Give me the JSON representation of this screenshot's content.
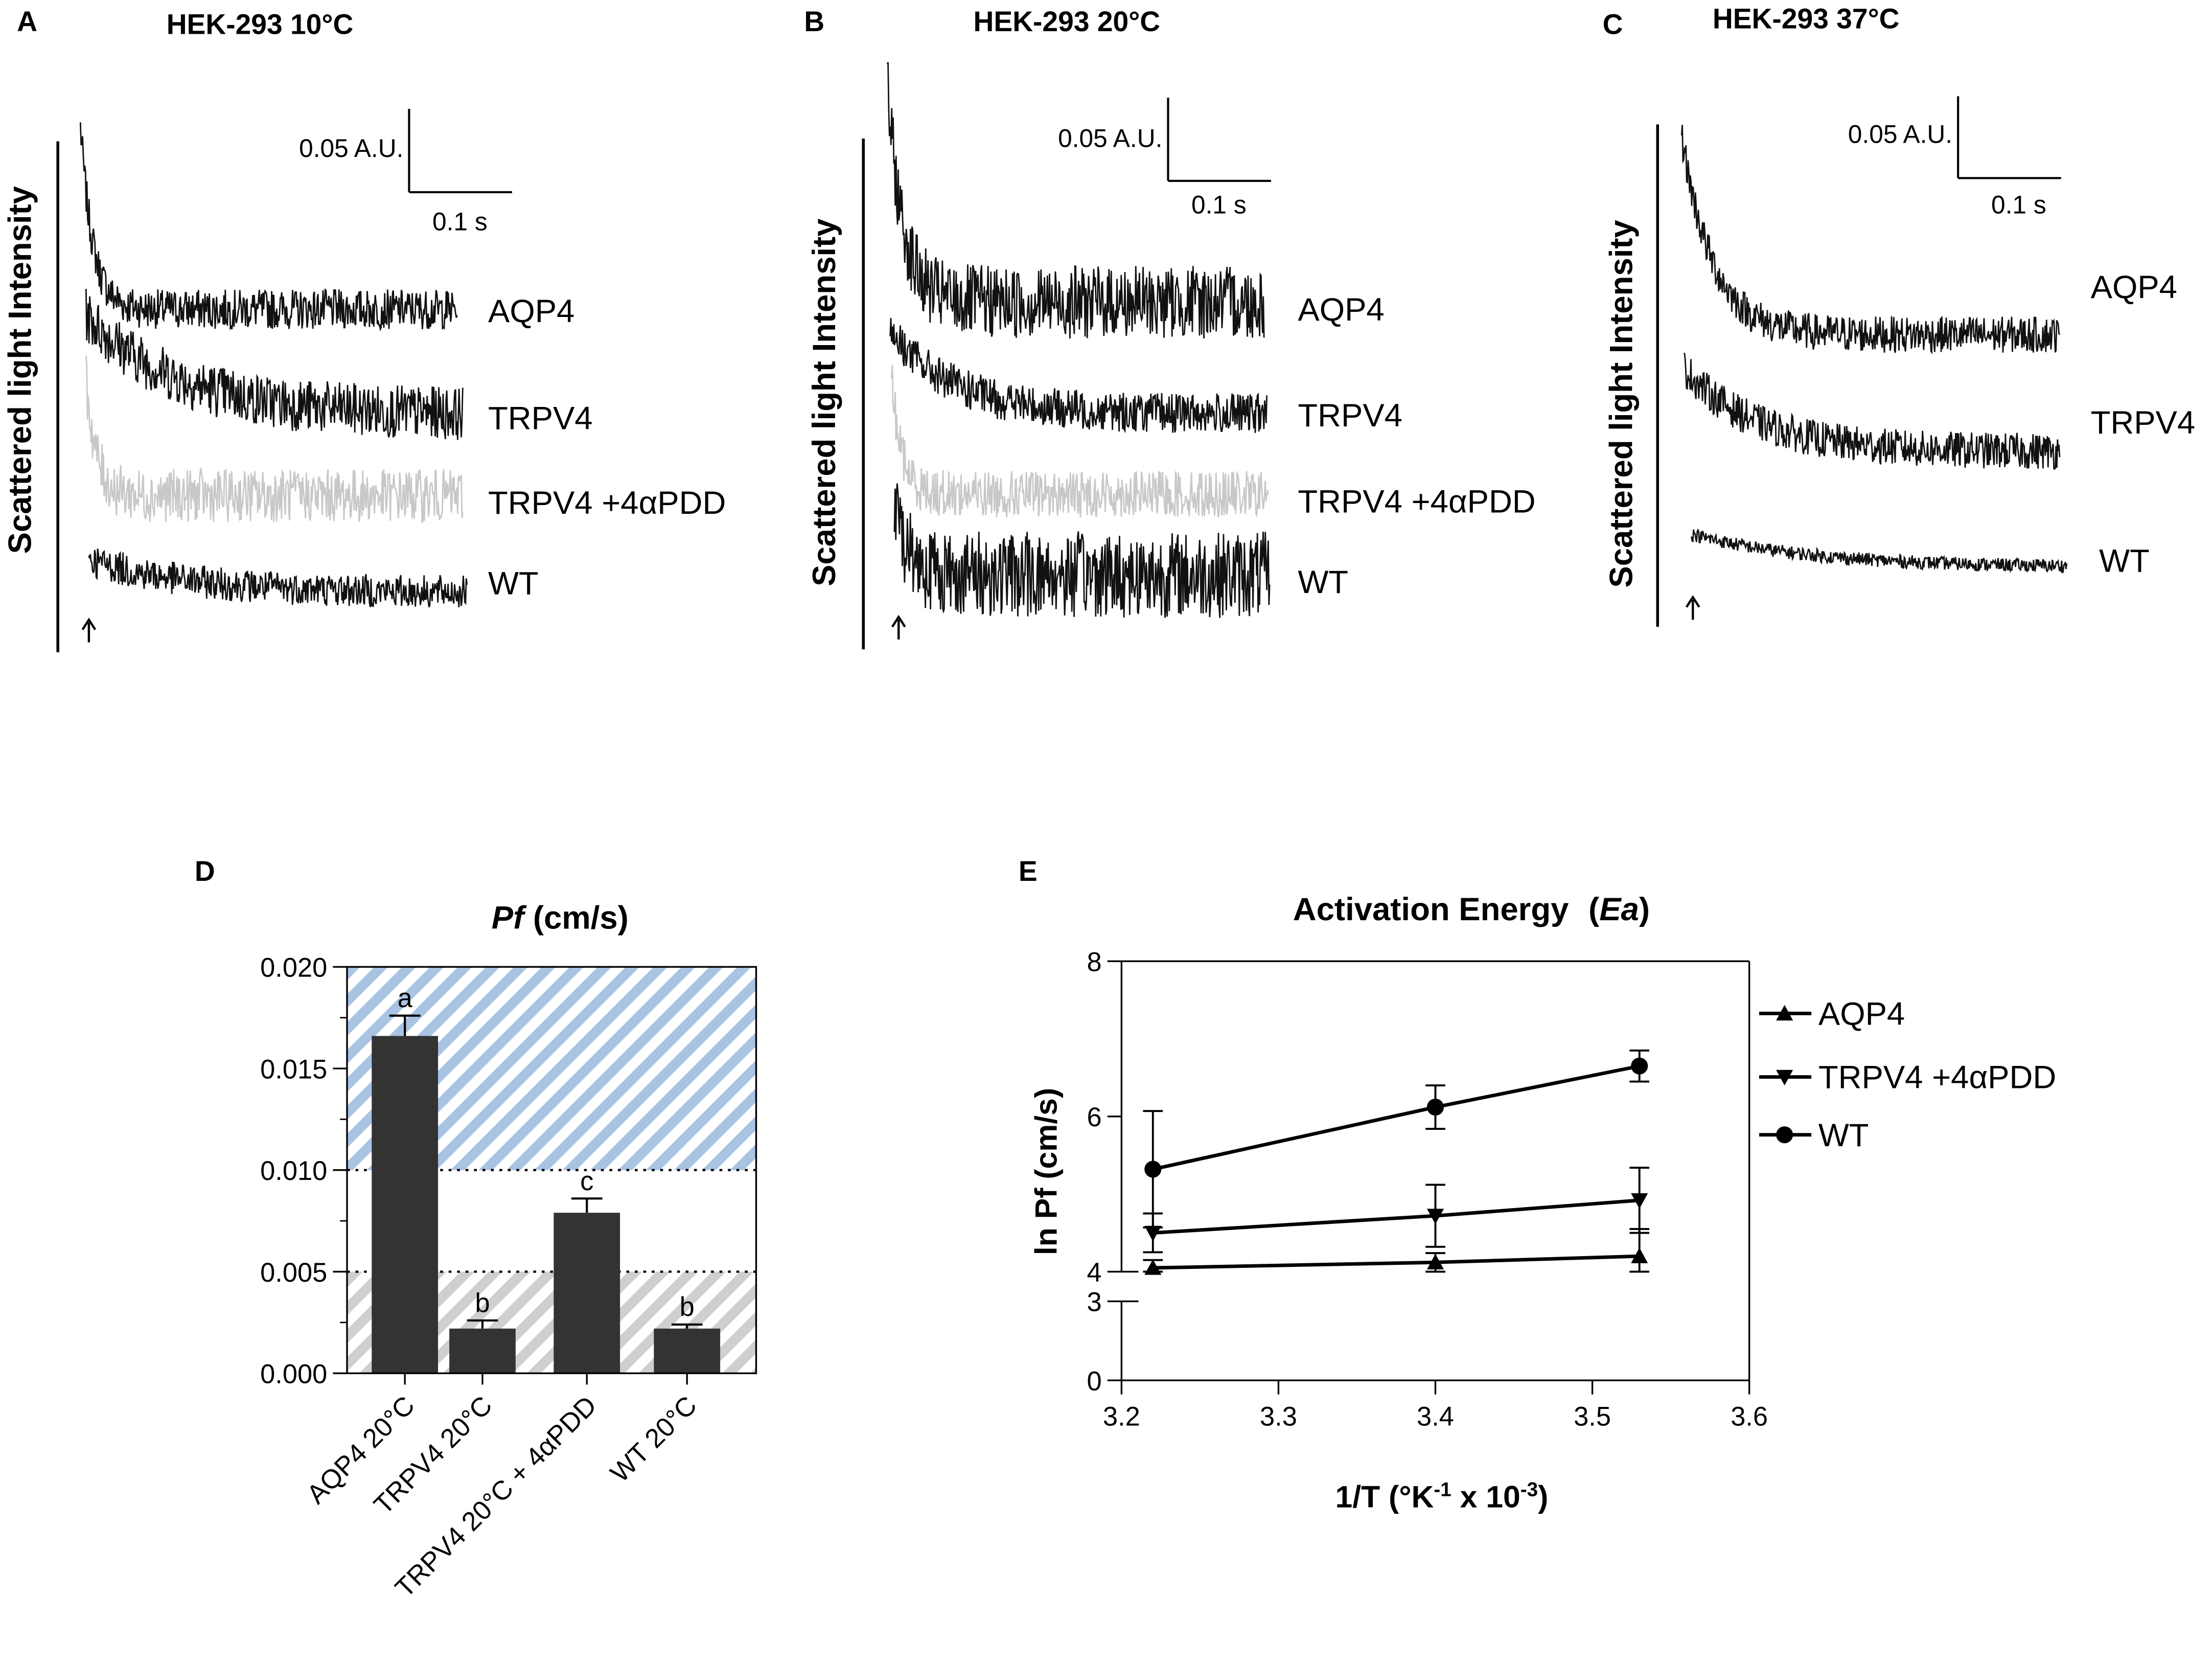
{
  "colors": {
    "trace_dark": "#111111",
    "trace_light": "#c8c8c8",
    "bar": "#333333",
    "hatch_blue": "#a9c3e3",
    "hatch_gray": "#cfcfcf",
    "axis": "#000000"
  },
  "chart_data": [
    {
      "id": "A",
      "type": "line",
      "panel_label": "A",
      "title": "HEK-293 10°C",
      "ylabel": "Scattered light Intensity",
      "scale_bar": {
        "y_label": "0.05 A.U.",
        "x_label": "0.1 s"
      },
      "stimulus_marker": "arrow",
      "traces": [
        {
          "name": "AQP4",
          "shade": "dark",
          "drop": 0.11,
          "tau": 0.012,
          "noise": 0.012
        },
        {
          "name": "TRPV4",
          "shade": "dark",
          "drop": 0.06,
          "tau": 0.09,
          "noise": 0.016
        },
        {
          "name": "TRPV4 +4αPDD",
          "shade": "light",
          "drop": 0.07,
          "tau": 0.01,
          "noise": 0.016
        },
        {
          "name": "WT",
          "shade": "dark",
          "drop": 0.02,
          "tau": 0.1,
          "noise": 0.01
        }
      ]
    },
    {
      "id": "B",
      "type": "line",
      "panel_label": "B",
      "title": "HEK-293 20°C",
      "ylabel": "Scattered light Intensity",
      "scale_bar": {
        "y_label": "0.05 A.U.",
        "x_label": "0.1 s"
      },
      "stimulus_marker": "arrow",
      "traces": [
        {
          "name": "AQP4",
          "shade": "dark",
          "drop": 0.13,
          "tau": 0.015,
          "noise": 0.022
        },
        {
          "name": "TRPV4",
          "shade": "dark",
          "drop": 0.05,
          "tau": 0.06,
          "noise": 0.012
        },
        {
          "name": "TRPV4 +4αPDD",
          "shade": "light",
          "drop": 0.07,
          "tau": 0.01,
          "noise": 0.014
        },
        {
          "name": "WT",
          "shade": "dark",
          "drop": 0.04,
          "tau": 0.015,
          "noise": 0.026
        }
      ]
    },
    {
      "id": "C",
      "type": "line",
      "panel_label": "C",
      "title": "HEK-293 37°C",
      "ylabel": "Scattered light Intensity",
      "scale_bar": {
        "y_label": "0.05 A.U.",
        "x_label": "0.1 s"
      },
      "stimulus_marker": "arrow",
      "traces": [
        {
          "name": "AQP4",
          "shade": "dark",
          "drop": 0.12,
          "tau": 0.03,
          "noise": 0.011
        },
        {
          "name": "TRPV4",
          "shade": "dark",
          "drop": 0.05,
          "tau": 0.07,
          "noise": 0.011
        },
        {
          "name": "WT",
          "shade": "dark",
          "drop": 0.02,
          "tau": 0.12,
          "noise": 0.004
        }
      ]
    },
    {
      "id": "D",
      "type": "bar",
      "panel_label": "D",
      "title_italic": "Pf",
      "title_rest": " (cm/s)",
      "categories": [
        "AQP4 20°C",
        "TRPV4 20°C",
        "TRPV4 20°C + 4αPDD",
        "WT 20°C"
      ],
      "values": [
        0.0166,
        0.0022,
        0.0079,
        0.0022
      ],
      "errors": [
        0.001,
        0.0004,
        0.0007,
        0.0002
      ],
      "significance": [
        "a",
        "b",
        "c",
        "b"
      ],
      "ylim": [
        0,
        0.02
      ],
      "yticks": [
        "0.000",
        "0.005",
        "0.010",
        "0.015",
        "0.020"
      ],
      "ytick_values": [
        0,
        0.005,
        0.01,
        0.015,
        0.02
      ],
      "threshold_lines": [
        0.005,
        0.01
      ],
      "shaded_regions": [
        {
          "from": 0.01,
          "to": 0.02,
          "color": "blue"
        },
        {
          "from": 0,
          "to": 0.005,
          "color": "gray"
        }
      ]
    },
    {
      "id": "E",
      "type": "line",
      "panel_label": "E",
      "title": "Activation Energy",
      "title_italic": "Ea",
      "xlabel": "1/T (°K",
      "xlabel_sup1": "-1",
      "xlabel_mid": " x 10",
      "xlabel_sup2": "-3",
      "xlabel_end": ")",
      "ylabel": "ln Pf (cm/s)",
      "xlim": [
        3.2,
        3.6
      ],
      "xticks": [
        "3.2",
        "3.3",
        "3.4",
        "3.5",
        "3.6"
      ],
      "xtick_values": [
        3.2,
        3.3,
        3.4,
        3.5,
        3.6
      ],
      "yticks_lower": [
        "0",
        "3"
      ],
      "ytick_lower_values": [
        0,
        3
      ],
      "yticks_upper": [
        "4",
        "6",
        "8"
      ],
      "ytick_upper_values": [
        4,
        6,
        8
      ],
      "y_axis_break": [
        3,
        4
      ],
      "series": [
        {
          "name": "AQP4",
          "marker": "triangle-up",
          "x": [
            3.22,
            3.4,
            3.53
          ],
          "y": [
            4.05,
            4.12,
            4.2
          ],
          "err": [
            0.1,
            0.12,
            0.35
          ]
        },
        {
          "name": "TRPV4 +4αPDD",
          "marker": "triangle-down",
          "x": [
            3.22,
            3.4,
            3.53
          ],
          "y": [
            4.5,
            4.72,
            4.92
          ],
          "err": [
            0.25,
            0.4,
            0.42
          ]
        },
        {
          "name": "WT",
          "marker": "circle",
          "x": [
            3.22,
            3.4,
            3.53
          ],
          "y": [
            5.32,
            6.12,
            6.65
          ],
          "err": [
            0.75,
            0.28,
            0.2
          ]
        }
      ]
    }
  ]
}
